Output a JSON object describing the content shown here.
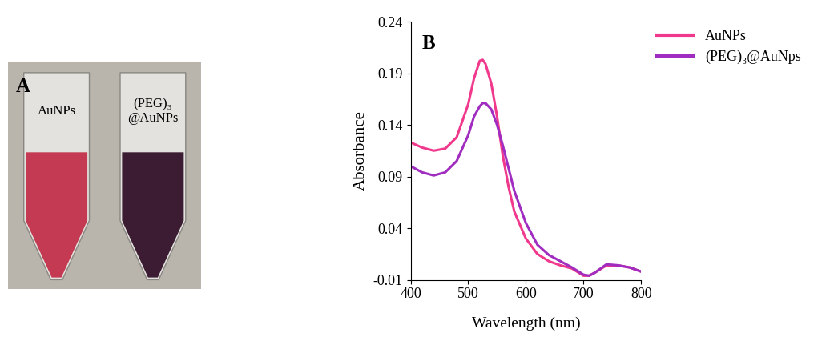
{
  "panel_a": {
    "label": "A",
    "tubes": [
      {
        "label": "AuNPs",
        "color": "#c43a52"
      },
      {
        "label": "(PEG)₃\n@AuNPs",
        "color": "#3b1c33"
      }
    ]
  },
  "chart_data": {
    "type": "line",
    "panel_label": "B",
    "x_label": "Wavelength (nm)",
    "y_label": "Absorbance",
    "xlim": [
      400,
      800
    ],
    "xticks": [
      400,
      500,
      600,
      700,
      800
    ],
    "ylim": [
      -0.01,
      0.24
    ],
    "yticks": [
      -0.01,
      0.04,
      0.09,
      0.14,
      0.19,
      0.24
    ],
    "legend": "upper right",
    "x": [
      400,
      420,
      440,
      460,
      480,
      500,
      510,
      520,
      525,
      530,
      540,
      550,
      560,
      570,
      580,
      600,
      620,
      640,
      660,
      680,
      700,
      710,
      720,
      740,
      760,
      780,
      800
    ],
    "series": [
      {
        "name": "AuNPs",
        "color": "#f0388c",
        "values": [
          0.123,
          0.118,
          0.115,
          0.117,
          0.128,
          0.16,
          0.185,
          0.202,
          0.203,
          0.199,
          0.18,
          0.148,
          0.11,
          0.08,
          0.056,
          0.03,
          0.015,
          0.008,
          0.004,
          0.001,
          -0.006,
          -0.006,
          -0.003,
          0.004,
          0.004,
          0.002,
          -0.002
        ]
      },
      {
        "name": "(PEG)₃@AuNps",
        "color": "#a02cc0",
        "values": [
          0.1,
          0.094,
          0.091,
          0.094,
          0.105,
          0.13,
          0.148,
          0.158,
          0.161,
          0.161,
          0.155,
          0.14,
          0.12,
          0.098,
          0.076,
          0.045,
          0.024,
          0.014,
          0.008,
          0.002,
          -0.005,
          -0.006,
          -0.003,
          0.005,
          0.004,
          0.002,
          -0.002
        ]
      }
    ]
  }
}
